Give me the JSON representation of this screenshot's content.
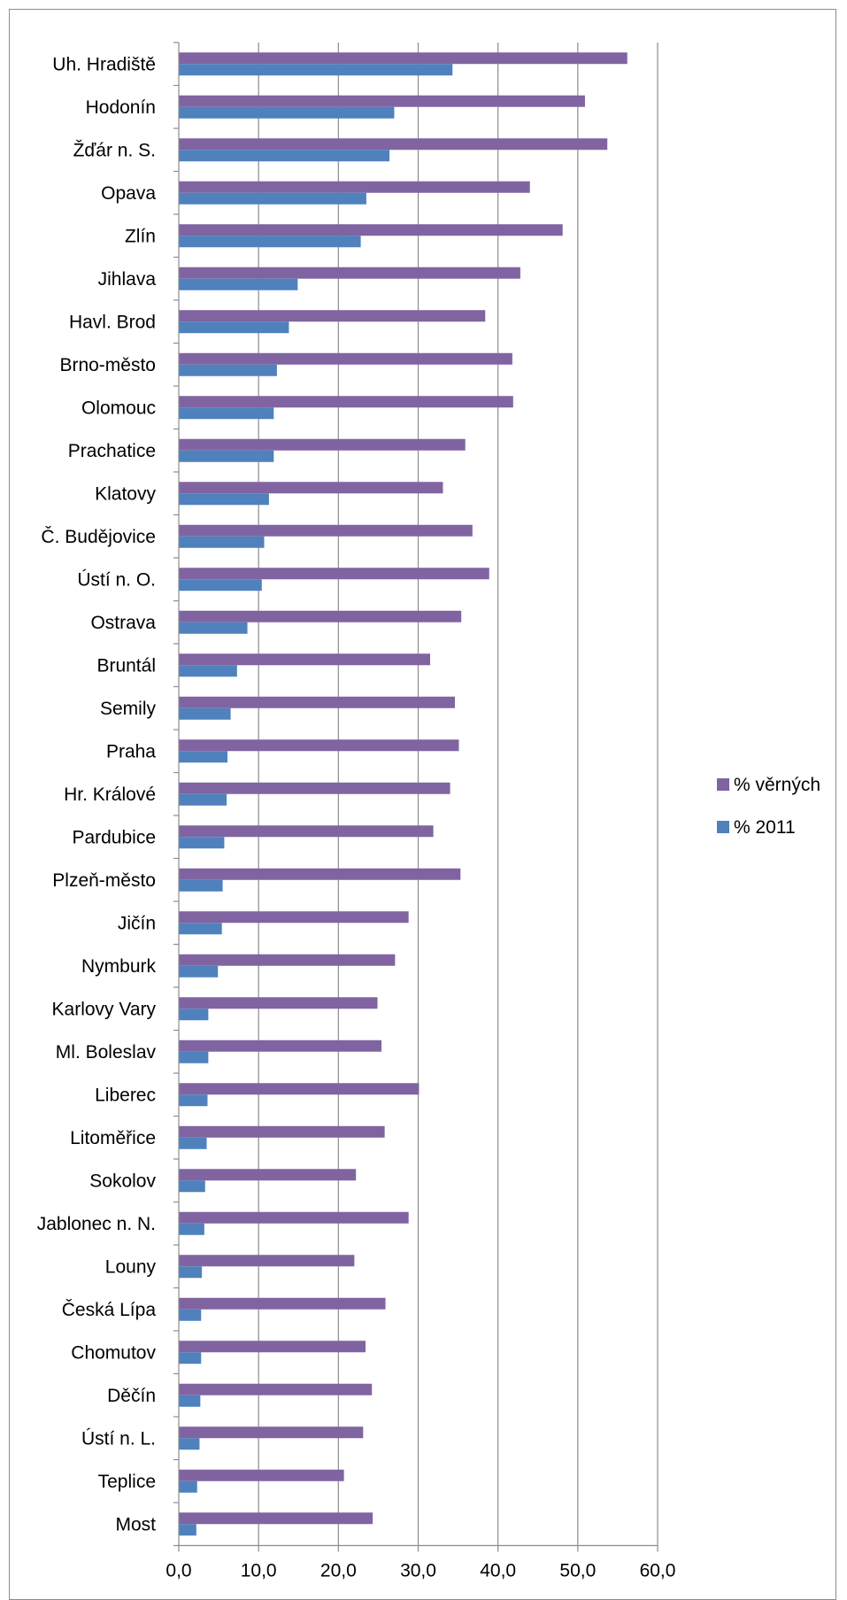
{
  "chart_data": {
    "type": "bar",
    "orientation": "horizontal",
    "categories": [
      "Uh. Hradiště",
      "Hodonín",
      "Žďár n. S.",
      "Opava",
      "Zlín",
      "Jihlava",
      "Havl. Brod",
      "Brno-město",
      "Olomouc",
      "Prachatice",
      "Klatovy",
      "Č. Budějovice",
      "Ústí n. O.",
      "Ostrava",
      "Bruntál",
      "Semily",
      "Praha",
      "Hr. Králové",
      "Pardubice",
      "Plzeň-město",
      "Jičín",
      "Nymburk",
      "Karlovy Vary",
      "Ml. Boleslav",
      "Liberec",
      "Litoměřice",
      "Sokolov",
      "Jablonec n. N.",
      "Louny",
      "Česká Lípa",
      "Chomutov",
      "Děčín",
      "Ústí n. L.",
      "Teplice",
      "Most"
    ],
    "series": [
      {
        "name": "% věrných",
        "color": "#8064a2",
        "values": [
          56.2,
          50.9,
          53.7,
          44.0,
          48.1,
          42.8,
          38.4,
          41.8,
          41.9,
          35.9,
          33.1,
          36.8,
          38.9,
          35.4,
          31.5,
          34.6,
          35.1,
          34.0,
          31.9,
          35.3,
          28.8,
          27.1,
          24.9,
          25.4,
          30.1,
          25.8,
          22.2,
          28.8,
          22.0,
          25.9,
          23.4,
          24.2,
          23.1,
          20.7,
          24.3
        ]
      },
      {
        "name": "% 2011",
        "color": "#4f81bd",
        "values": [
          34.3,
          27.0,
          26.4,
          23.5,
          22.8,
          14.9,
          13.8,
          12.3,
          11.9,
          11.9,
          11.3,
          10.7,
          10.4,
          8.6,
          7.3,
          6.5,
          6.1,
          6.0,
          5.7,
          5.5,
          5.4,
          4.9,
          3.7,
          3.7,
          3.6,
          3.5,
          3.3,
          3.2,
          2.9,
          2.8,
          2.8,
          2.7,
          2.6,
          2.3,
          2.2
        ]
      }
    ],
    "xlim": [
      0,
      60
    ],
    "x_ticks": [
      "0,0",
      "10,0",
      "20,0",
      "30,0",
      "40,0",
      "50,0",
      "60,0"
    ],
    "grid": "vertical",
    "legend_position": "right"
  }
}
